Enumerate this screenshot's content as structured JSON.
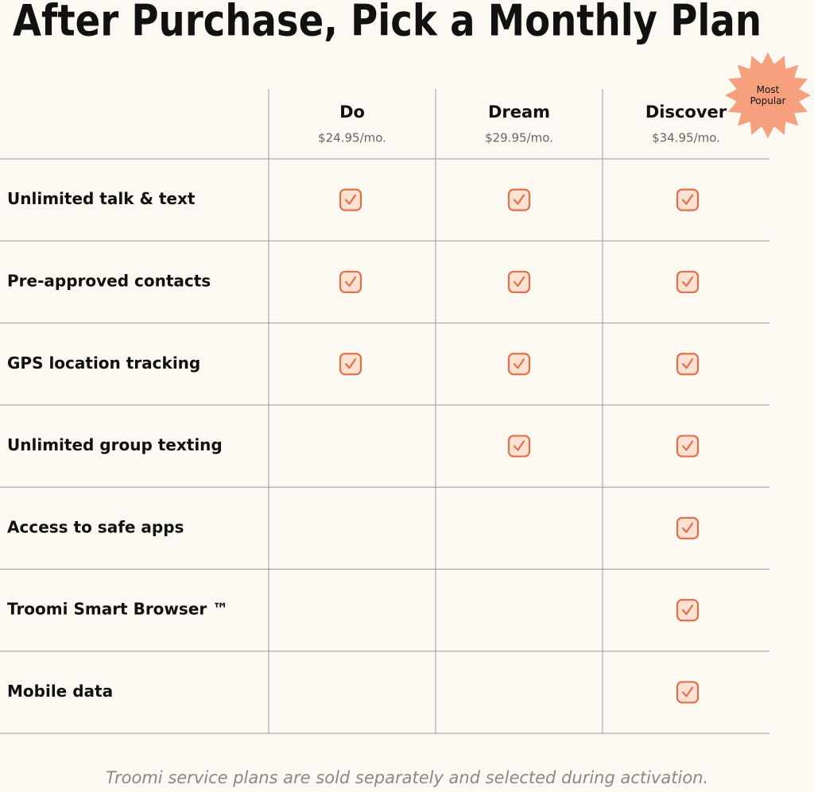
{
  "title": "After Purchase, Pick a Monthly Plan",
  "badge": "Most Popular",
  "plans": [
    {
      "name": "Do",
      "price": "$24.95/mo."
    },
    {
      "name": "Dream",
      "price": "$29.95/mo."
    },
    {
      "name": "Discover",
      "price": "$34.95/mo."
    }
  ],
  "features": [
    {
      "label": "Unlimited talk & text",
      "included": [
        true,
        true,
        true
      ]
    },
    {
      "label": "Pre-approved contacts",
      "included": [
        true,
        true,
        true
      ]
    },
    {
      "label": "GPS location tracking",
      "included": [
        true,
        true,
        true
      ]
    },
    {
      "label": "Unlimited group texting",
      "included": [
        false,
        true,
        true
      ]
    },
    {
      "label": "Access to safe apps",
      "included": [
        false,
        false,
        true
      ]
    },
    {
      "label": "Troomi Smart Browser ™",
      "included": [
        false,
        false,
        true
      ]
    },
    {
      "label": "Mobile data",
      "included": [
        false,
        false,
        true
      ]
    }
  ],
  "footnote": "Troomi service plans are sold separately and selected during activation."
}
